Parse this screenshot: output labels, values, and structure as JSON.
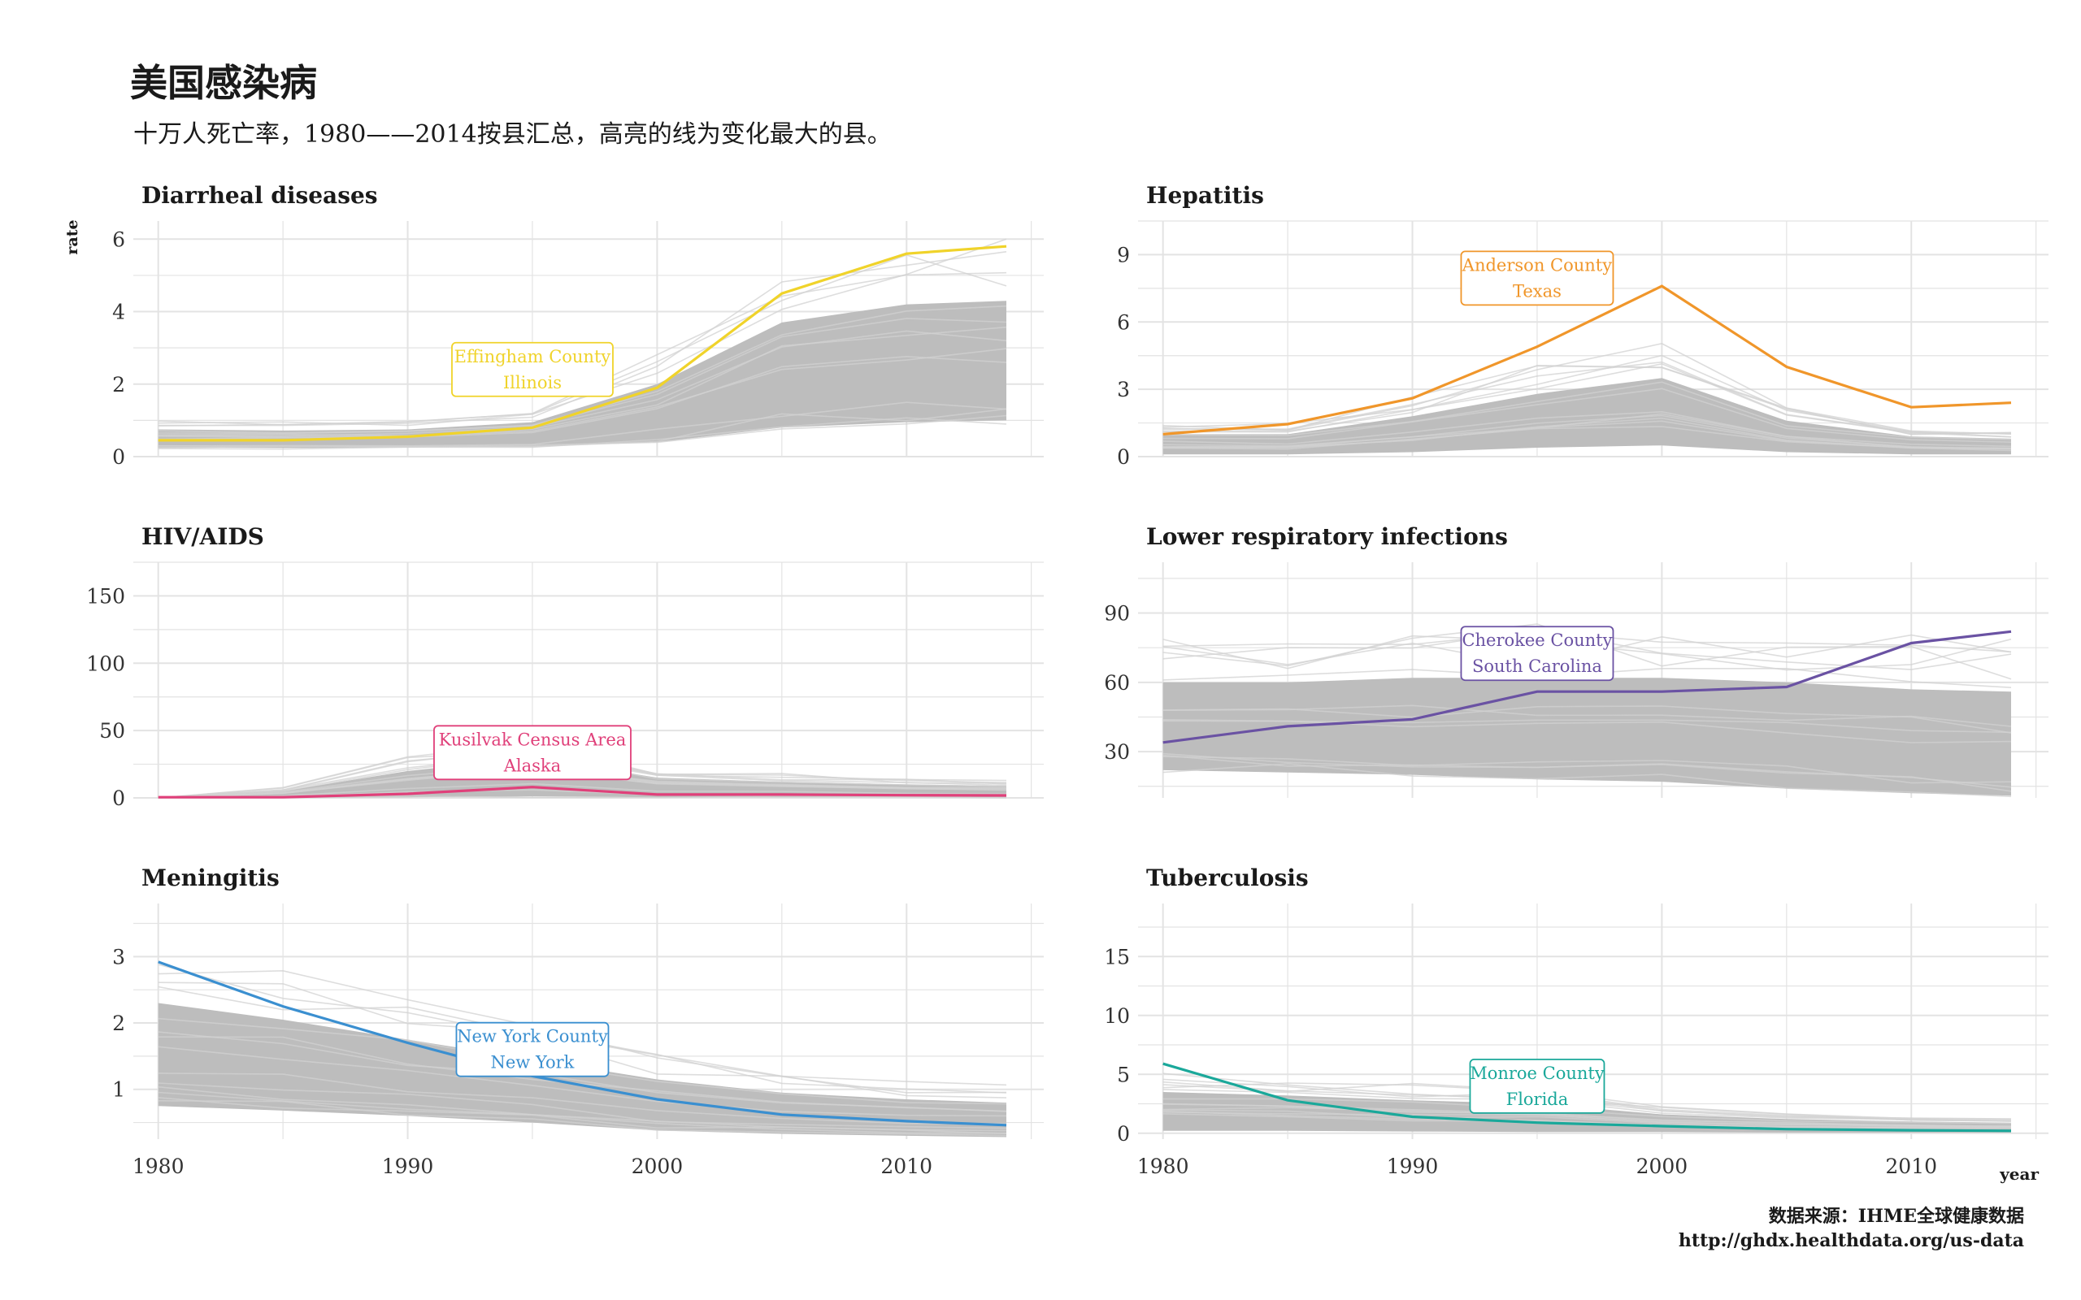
{
  "page": {
    "title": "美国感染病",
    "subtitle": "十万人死亡率，1980——2014按县汇总，高亮的线为变化最大的县。",
    "caption_line1": "数据来源：IHME全球健康数据",
    "caption_line2": "http://ghdx.healthdata.org/us-data"
  },
  "colors": {
    "background_lines": "#bdbdbd",
    "grid": "#e3e3e3",
    "text": "#1a1a1a"
  },
  "chart_data": {
    "type": "line",
    "layout": "facet-grid-3x2",
    "xlabel": "year",
    "ylabel": "rate",
    "x": [
      1980,
      1985,
      1990,
      1995,
      2000,
      2005,
      2010,
      2014
    ],
    "xticks": [
      "1980",
      "1990",
      "2000",
      "2010"
    ],
    "xlim": [
      1979,
      2015.5
    ],
    "facets": [
      {
        "name": "Diarrheal diseases",
        "ylim": [
          0,
          6.5
        ],
        "yticks": [
          0,
          2,
          4,
          6
        ],
        "band_upper": [
          0.75,
          0.72,
          0.75,
          0.95,
          2.0,
          3.7,
          4.2,
          4.3
        ],
        "band_lower": [
          0.25,
          0.24,
          0.25,
          0.28,
          0.4,
          0.8,
          0.95,
          1.0
        ],
        "highlight": {
          "label_line1": "Effingham County",
          "label_line2": "Illinois",
          "color": "#f0d32a",
          "values": [
            0.45,
            0.45,
            0.55,
            0.8,
            1.9,
            4.5,
            5.6,
            5.8
          ]
        }
      },
      {
        "name": "Hepatitis",
        "ylim": [
          0,
          10.5
        ],
        "yticks": [
          0,
          3,
          6,
          9
        ],
        "band_upper": [
          1.0,
          1.0,
          1.8,
          2.8,
          3.5,
          1.6,
          0.9,
          0.8
        ],
        "band_lower": [
          0.1,
          0.1,
          0.2,
          0.4,
          0.5,
          0.2,
          0.1,
          0.1
        ],
        "highlight": {
          "label_line1": "Anderson County",
          "label_line2": "Texas",
          "color": "#f0962a",
          "values": [
            1.0,
            1.45,
            2.6,
            4.9,
            7.6,
            4.0,
            2.2,
            2.4
          ]
        }
      },
      {
        "name": "HIV/AIDS",
        "ylim": [
          0,
          175
        ],
        "yticks": [
          0,
          50,
          100,
          150
        ],
        "band_upper": [
          0,
          5,
          20,
          30,
          15,
          12,
          10,
          9
        ],
        "band_lower": [
          0,
          0,
          0.5,
          1,
          0.5,
          0.5,
          0.5,
          0.5
        ],
        "highlight": {
          "label_line1": "Kusilvak Census Area",
          "label_line2": "Alaska",
          "color": "#e0407a",
          "values": [
            0.5,
            0.5,
            3,
            8,
            2.5,
            2.5,
            2,
            1.8
          ]
        }
      },
      {
        "name": "Lower respiratory infections",
        "ylim": [
          10,
          112
        ],
        "yticks": [
          30,
          60,
          90
        ],
        "band_upper": [
          60,
          60,
          62,
          62,
          62,
          60,
          57,
          56
        ],
        "band_lower": [
          22,
          21,
          20,
          18,
          17,
          14,
          12,
          11
        ],
        "highlight": {
          "label_line1": "Cherokee County",
          "label_line2": "South Carolina",
          "color": "#6a52a3",
          "values": [
            34,
            41,
            44,
            56,
            56,
            58,
            77,
            82
          ]
        }
      },
      {
        "name": "Meningitis",
        "ylim": [
          0.25,
          3.8
        ],
        "yticks": [
          1,
          2,
          3
        ],
        "band_upper": [
          2.3,
          2.05,
          1.75,
          1.45,
          1.15,
          0.95,
          0.85,
          0.8
        ],
        "band_lower": [
          0.75,
          0.68,
          0.6,
          0.5,
          0.38,
          0.33,
          0.3,
          0.28
        ],
        "highlight": {
          "label_line1": "New York County",
          "label_line2": "New York",
          "color": "#3a8fd0",
          "values": [
            2.92,
            2.25,
            1.7,
            1.2,
            0.85,
            0.62,
            0.52,
            0.46
          ]
        }
      },
      {
        "name": "Tuberculosis",
        "ylim": [
          -0.5,
          19.5
        ],
        "yticks": [
          0,
          5,
          10,
          15
        ],
        "band_upper": [
          3.5,
          3.2,
          2.8,
          2.5,
          1.6,
          1.2,
          1.0,
          0.9
        ],
        "band_lower": [
          0.2,
          0.2,
          0.15,
          0.1,
          0.1,
          0.05,
          0.05,
          0.05
        ],
        "highlight": {
          "label_line1": "Monroe County",
          "label_line2": "Florida",
          "color": "#1aa89a",
          "values": [
            5.9,
            2.8,
            1.4,
            0.9,
            0.6,
            0.35,
            0.25,
            0.2
          ]
        }
      }
    ]
  }
}
